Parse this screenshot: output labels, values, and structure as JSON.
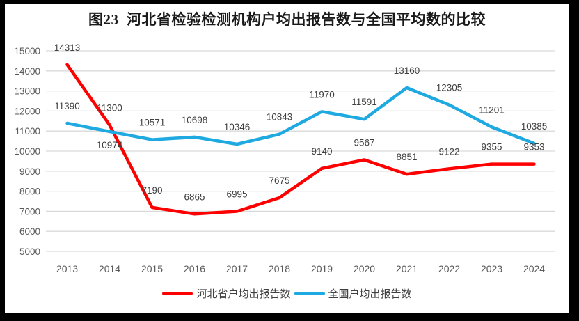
{
  "chart_data": {
    "type": "line",
    "title": "图23  河北省检验检测机构户均出报告数与全国平均数的比较",
    "categories": [
      "2013",
      "2014",
      "2015",
      "2016",
      "2017",
      "2018",
      "2019",
      "2020",
      "2021",
      "2022",
      "2023",
      "2024"
    ],
    "series": [
      {
        "name": "河北省户均出报告数",
        "color": "#FE0000",
        "values": [
          14313,
          11300,
          7190,
          6865,
          6995,
          7675,
          9140,
          9567,
          8851,
          9122,
          9355,
          9353
        ]
      },
      {
        "name": "全国户均出报告数",
        "color": "#1FA9E1",
        "values": [
          11390,
          10974,
          10571,
          10698,
          10346,
          10843,
          11970,
          11591,
          13160,
          12305,
          11201,
          10385
        ]
      }
    ],
    "ylim": [
      5000,
      15000
    ],
    "yticks": [
      5000,
      6000,
      7000,
      8000,
      9000,
      10000,
      11000,
      12000,
      13000,
      14000,
      15000
    ],
    "grid": true,
    "data_labels": true,
    "legend_position": "bottom"
  },
  "colors": {
    "frame": "#000000",
    "chart_bg": "#FFFFFF",
    "grid": "#D9D9D9",
    "axis_text": "#595959",
    "data_label_text": "#404040",
    "title_text": "#1A1A1A",
    "legend_text": "#404040"
  }
}
